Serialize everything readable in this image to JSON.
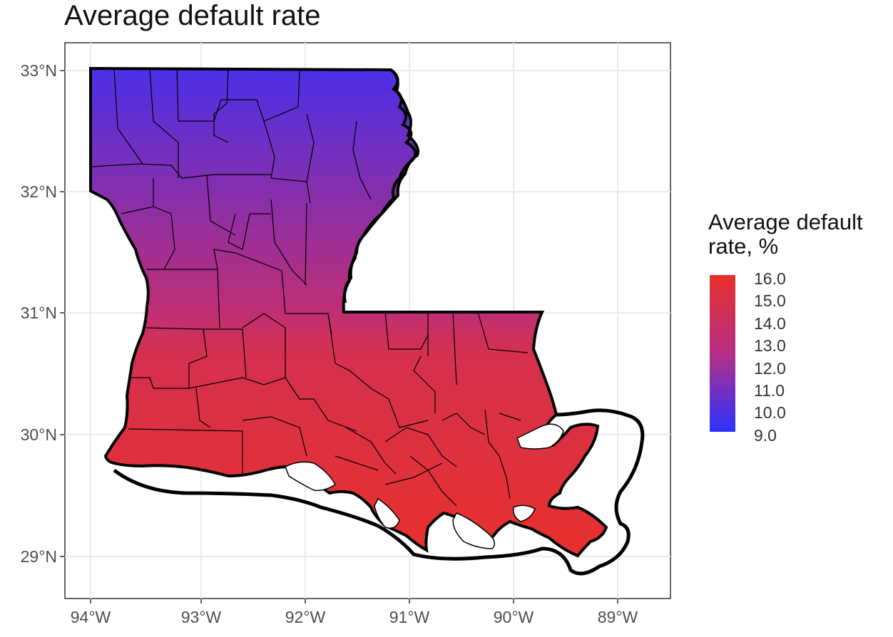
{
  "title": "Average default rate",
  "legend": {
    "title_line1": "Average default",
    "title_line2": "rate, %",
    "labels": [
      "16.0",
      "15.0",
      "14.0",
      "13.0",
      "12.0",
      "11.0",
      "10.0",
      "9.0"
    ],
    "color_high": "#e8302c",
    "color_mid": "#b52f86",
    "color_low": "#2a32ff"
  },
  "x_axis_labels": [
    "94°W",
    "93°W",
    "92°W",
    "91°W",
    "90°W",
    "89°W"
  ],
  "y_axis_labels": [
    "33°N",
    "32°N",
    "31°N",
    "30°N",
    "29°N"
  ],
  "colors": {
    "panel_border": "#333333",
    "grid": "#ebebeb",
    "outline": "#000000",
    "water": "#ffffff"
  }
}
